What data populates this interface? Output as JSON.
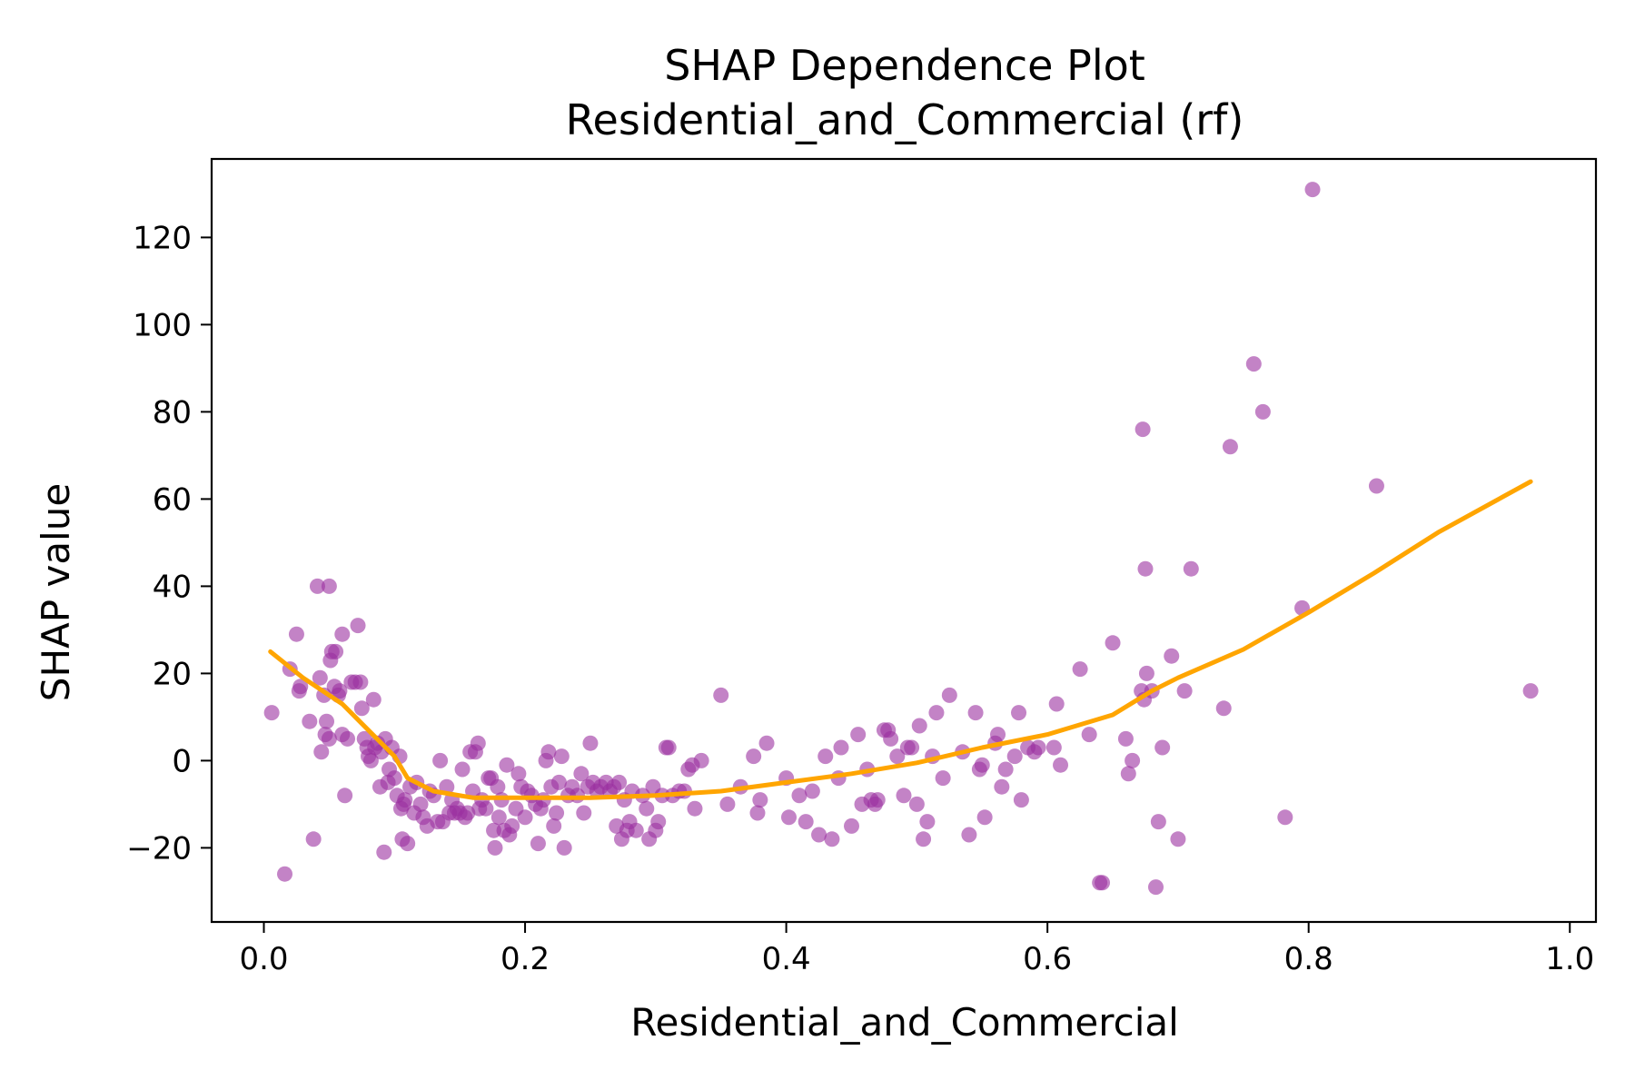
{
  "chart_data": {
    "type": "scatter",
    "title": "SHAP Dependence Plot",
    "subtitle": "Residential_and_Commercial (rf)",
    "xlabel": "Residential_and_Commercial",
    "ylabel": "SHAP value",
    "xlim": [
      -0.04,
      1.02
    ],
    "ylim": [
      -37,
      138
    ],
    "x_ticks": [
      0.0,
      0.2,
      0.4,
      0.6,
      0.8,
      1.0
    ],
    "x_tick_labels": [
      "0.0",
      "0.2",
      "0.4",
      "0.6",
      "0.8",
      "1.0"
    ],
    "y_ticks": [
      -20,
      0,
      20,
      40,
      60,
      80,
      100,
      120
    ],
    "y_tick_labels": [
      "−20",
      "0",
      "20",
      "40",
      "60",
      "80",
      "100",
      "120"
    ],
    "grid": false,
    "series": [
      {
        "kind": "scatter",
        "color": "#9b30a0",
        "points": [
          [
            0.006,
            11
          ],
          [
            0.016,
            -26
          ],
          [
            0.02,
            21
          ],
          [
            0.025,
            29
          ],
          [
            0.027,
            16
          ],
          [
            0.028,
            17
          ],
          [
            0.035,
            9
          ],
          [
            0.038,
            -18
          ],
          [
            0.041,
            40
          ],
          [
            0.043,
            19
          ],
          [
            0.044,
            2
          ],
          [
            0.046,
            15
          ],
          [
            0.047,
            6
          ],
          [
            0.048,
            9
          ],
          [
            0.05,
            40
          ],
          [
            0.05,
            5
          ],
          [
            0.051,
            23
          ],
          [
            0.052,
            25
          ],
          [
            0.054,
            17
          ],
          [
            0.055,
            25
          ],
          [
            0.057,
            15
          ],
          [
            0.058,
            16
          ],
          [
            0.06,
            29
          ],
          [
            0.06,
            6
          ],
          [
            0.062,
            -8
          ],
          [
            0.064,
            5
          ],
          [
            0.067,
            18
          ],
          [
            0.07,
            18
          ],
          [
            0.072,
            31
          ],
          [
            0.074,
            18
          ],
          [
            0.075,
            12
          ],
          [
            0.077,
            5
          ],
          [
            0.079,
            3
          ],
          [
            0.08,
            1
          ],
          [
            0.082,
            0
          ],
          [
            0.084,
            14
          ],
          [
            0.085,
            3
          ],
          [
            0.087,
            4
          ],
          [
            0.089,
            -6
          ],
          [
            0.09,
            2
          ],
          [
            0.092,
            -21
          ],
          [
            0.093,
            5
          ],
          [
            0.095,
            -5
          ],
          [
            0.096,
            -2
          ],
          [
            0.098,
            3
          ],
          [
            0.1,
            -4
          ],
          [
            0.102,
            -8
          ],
          [
            0.104,
            1
          ],
          [
            0.105,
            -11
          ],
          [
            0.106,
            -18
          ],
          [
            0.107,
            -10
          ],
          [
            0.108,
            -9
          ],
          [
            0.11,
            -19
          ],
          [
            0.112,
            -6
          ],
          [
            0.115,
            -12
          ],
          [
            0.117,
            -5
          ],
          [
            0.12,
            -10
          ],
          [
            0.122,
            -13
          ],
          [
            0.125,
            -15
          ],
          [
            0.127,
            -7
          ],
          [
            0.13,
            -8
          ],
          [
            0.133,
            -14
          ],
          [
            0.135,
            0
          ],
          [
            0.137,
            -14
          ],
          [
            0.14,
            -6
          ],
          [
            0.142,
            -12
          ],
          [
            0.144,
            -9
          ],
          [
            0.146,
            -12
          ],
          [
            0.148,
            -11
          ],
          [
            0.15,
            -12
          ],
          [
            0.152,
            -2
          ],
          [
            0.154,
            -13
          ],
          [
            0.156,
            -12
          ],
          [
            0.158,
            2
          ],
          [
            0.16,
            -7
          ],
          [
            0.162,
            2
          ],
          [
            0.164,
            4
          ],
          [
            0.165,
            -11
          ],
          [
            0.167,
            -9
          ],
          [
            0.17,
            -11
          ],
          [
            0.172,
            -4
          ],
          [
            0.174,
            -4
          ],
          [
            0.176,
            -16
          ],
          [
            0.177,
            -20
          ],
          [
            0.179,
            -6
          ],
          [
            0.18,
            -13
          ],
          [
            0.182,
            -9
          ],
          [
            0.184,
            -16
          ],
          [
            0.186,
            -1
          ],
          [
            0.188,
            -17
          ],
          [
            0.19,
            -15
          ],
          [
            0.193,
            -11
          ],
          [
            0.195,
            -3
          ],
          [
            0.197,
            -6
          ],
          [
            0.2,
            -13
          ],
          [
            0.202,
            -7
          ],
          [
            0.205,
            -8
          ],
          [
            0.208,
            -10
          ],
          [
            0.21,
            -19
          ],
          [
            0.212,
            -11
          ],
          [
            0.214,
            -9
          ],
          [
            0.216,
            0
          ],
          [
            0.218,
            2
          ],
          [
            0.22,
            -6
          ],
          [
            0.222,
            -15
          ],
          [
            0.224,
            -12
          ],
          [
            0.226,
            -5
          ],
          [
            0.228,
            1
          ],
          [
            0.23,
            -20
          ],
          [
            0.233,
            -8
          ],
          [
            0.236,
            -6
          ],
          [
            0.24,
            -8
          ],
          [
            0.243,
            -3
          ],
          [
            0.245,
            -12
          ],
          [
            0.248,
            -6
          ],
          [
            0.25,
            4
          ],
          [
            0.252,
            -5
          ],
          [
            0.255,
            -7
          ],
          [
            0.258,
            -6
          ],
          [
            0.262,
            -5
          ],
          [
            0.265,
            -7
          ],
          [
            0.268,
            -6
          ],
          [
            0.27,
            -15
          ],
          [
            0.272,
            -5
          ],
          [
            0.274,
            -18
          ],
          [
            0.276,
            -9
          ],
          [
            0.278,
            -16
          ],
          [
            0.28,
            -14
          ],
          [
            0.282,
            -7
          ],
          [
            0.285,
            -16
          ],
          [
            0.29,
            -8
          ],
          [
            0.293,
            -11
          ],
          [
            0.295,
            -18
          ],
          [
            0.298,
            -6
          ],
          [
            0.3,
            -16
          ],
          [
            0.302,
            -14
          ],
          [
            0.305,
            -8
          ],
          [
            0.308,
            3
          ],
          [
            0.31,
            3
          ],
          [
            0.313,
            -8
          ],
          [
            0.318,
            -7
          ],
          [
            0.322,
            -7
          ],
          [
            0.325,
            -2
          ],
          [
            0.328,
            -1
          ],
          [
            0.33,
            -11
          ],
          [
            0.335,
            0
          ],
          [
            0.35,
            15
          ],
          [
            0.355,
            -10
          ],
          [
            0.365,
            -6
          ],
          [
            0.375,
            1
          ],
          [
            0.378,
            -12
          ],
          [
            0.38,
            -9
          ],
          [
            0.385,
            4
          ],
          [
            0.4,
            -4
          ],
          [
            0.402,
            -13
          ],
          [
            0.41,
            -8
          ],
          [
            0.415,
            -14
          ],
          [
            0.42,
            -7
          ],
          [
            0.425,
            -17
          ],
          [
            0.43,
            1
          ],
          [
            0.435,
            -18
          ],
          [
            0.44,
            -4
          ],
          [
            0.442,
            3
          ],
          [
            0.45,
            -15
          ],
          [
            0.455,
            6
          ],
          [
            0.458,
            -10
          ],
          [
            0.462,
            -2
          ],
          [
            0.465,
            -9
          ],
          [
            0.468,
            -10
          ],
          [
            0.47,
            -9
          ],
          [
            0.475,
            7
          ],
          [
            0.478,
            7
          ],
          [
            0.48,
            5
          ],
          [
            0.485,
            1
          ],
          [
            0.49,
            -8
          ],
          [
            0.493,
            3
          ],
          [
            0.496,
            3
          ],
          [
            0.5,
            -10
          ],
          [
            0.502,
            8
          ],
          [
            0.505,
            -18
          ],
          [
            0.508,
            -14
          ],
          [
            0.512,
            1
          ],
          [
            0.515,
            11
          ],
          [
            0.52,
            -4
          ],
          [
            0.525,
            15
          ],
          [
            0.535,
            2
          ],
          [
            0.54,
            -17
          ],
          [
            0.545,
            11
          ],
          [
            0.548,
            -2
          ],
          [
            0.55,
            -1
          ],
          [
            0.552,
            -13
          ],
          [
            0.56,
            4
          ],
          [
            0.562,
            6
          ],
          [
            0.565,
            -6
          ],
          [
            0.568,
            -2
          ],
          [
            0.575,
            1
          ],
          [
            0.578,
            11
          ],
          [
            0.58,
            -9
          ],
          [
            0.585,
            3
          ],
          [
            0.59,
            2
          ],
          [
            0.593,
            3
          ],
          [
            0.605,
            3
          ],
          [
            0.607,
            13
          ],
          [
            0.61,
            -1
          ],
          [
            0.625,
            21
          ],
          [
            0.632,
            6
          ],
          [
            0.64,
            -28
          ],
          [
            0.642,
            -28
          ],
          [
            0.65,
            27
          ],
          [
            0.66,
            5
          ],
          [
            0.662,
            -3
          ],
          [
            0.665,
            0
          ],
          [
            0.672,
            16
          ],
          [
            0.673,
            76
          ],
          [
            0.674,
            14
          ],
          [
            0.675,
            44
          ],
          [
            0.676,
            20
          ],
          [
            0.68,
            16
          ],
          [
            0.683,
            -29
          ],
          [
            0.685,
            -14
          ],
          [
            0.688,
            3
          ],
          [
            0.695,
            24
          ],
          [
            0.7,
            -18
          ],
          [
            0.705,
            16
          ],
          [
            0.71,
            44
          ],
          [
            0.735,
            12
          ],
          [
            0.74,
            72
          ],
          [
            0.758,
            91
          ],
          [
            0.765,
            80
          ],
          [
            0.782,
            -13
          ],
          [
            0.795,
            35
          ],
          [
            0.803,
            131
          ],
          [
            0.852,
            63
          ],
          [
            0.97,
            16
          ]
        ]
      },
      {
        "kind": "line",
        "color": "#ffa500",
        "points": [
          [
            0.005,
            25
          ],
          [
            0.03,
            19
          ],
          [
            0.06,
            13
          ],
          [
            0.08,
            7
          ],
          [
            0.1,
            1
          ],
          [
            0.11,
            -4
          ],
          [
            0.13,
            -7
          ],
          [
            0.16,
            -8.5
          ],
          [
            0.2,
            -8.5
          ],
          [
            0.25,
            -8.5
          ],
          [
            0.3,
            -8
          ],
          [
            0.35,
            -7
          ],
          [
            0.4,
            -5
          ],
          [
            0.45,
            -3
          ],
          [
            0.5,
            -0.5
          ],
          [
            0.55,
            3
          ],
          [
            0.6,
            6
          ],
          [
            0.65,
            10.5
          ],
          [
            0.68,
            16
          ],
          [
            0.7,
            19
          ],
          [
            0.75,
            25.5
          ],
          [
            0.8,
            34
          ],
          [
            0.85,
            43
          ],
          [
            0.9,
            52.5
          ],
          [
            0.97,
            64
          ]
        ]
      }
    ]
  }
}
